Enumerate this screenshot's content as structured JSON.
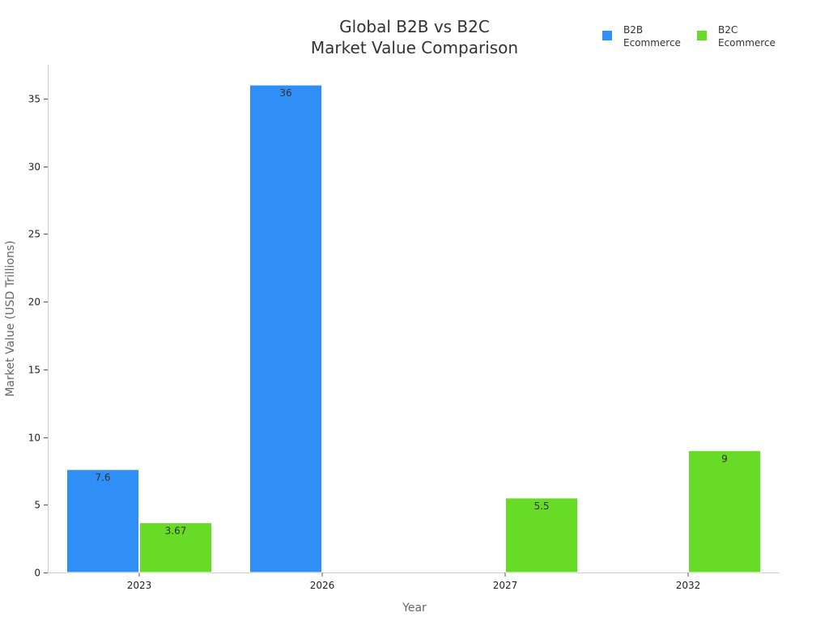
{
  "chart_data": {
    "type": "bar",
    "title": [
      "Global B2B vs B2C",
      "Market Value Comparison"
    ],
    "xlabel": "Year",
    "ylabel": "Market Value (USD Trillions)",
    "categories": [
      "2023",
      "2026",
      "2027",
      "2032"
    ],
    "ylim": [
      0,
      37.5
    ],
    "yticks": [
      0,
      5,
      10,
      15,
      20,
      25,
      30,
      35
    ],
    "grid": false,
    "legend_position": "top-right",
    "series": [
      {
        "name": "B2B\nEcommerce",
        "color": "#2f8ff6",
        "values": [
          7.6,
          36,
          null,
          null
        ]
      },
      {
        "name": "B2C\nEcommerce",
        "color": "#67db26",
        "values": [
          3.67,
          null,
          5.5,
          9
        ]
      }
    ]
  }
}
